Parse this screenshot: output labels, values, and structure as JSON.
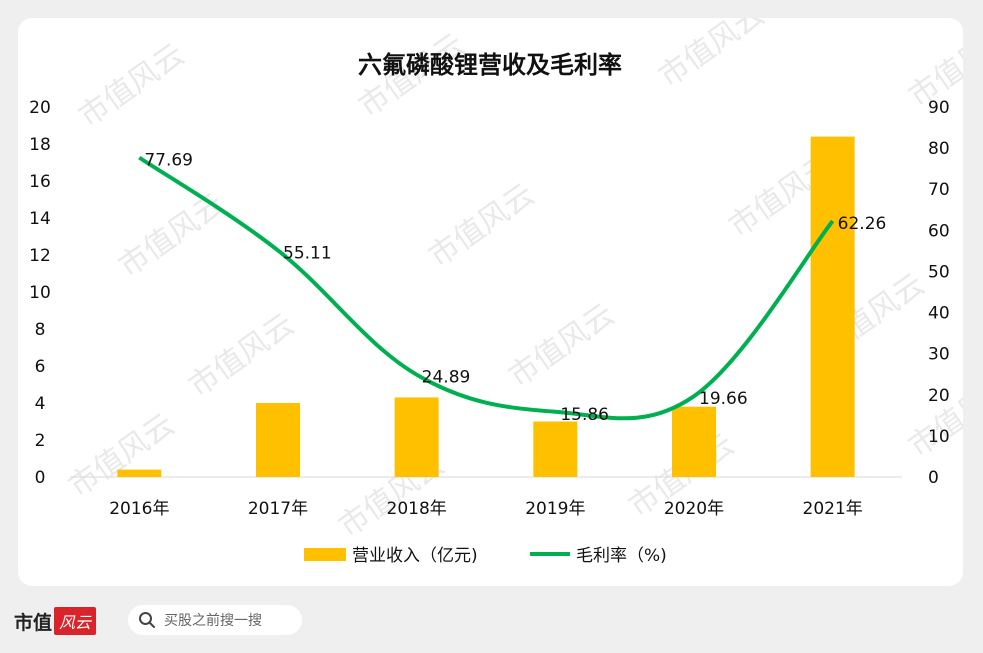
{
  "chart_data": {
    "type": "bar",
    "title": "六氟磷酸锂营收及毛利率",
    "categories": [
      "2016年",
      "2017年",
      "2018年",
      "2019年",
      "2020年",
      "2021年"
    ],
    "series": [
      {
        "name": "营业收入（亿元)",
        "type": "bar",
        "axis": "left",
        "color": "#ffc000",
        "values": [
          0.4,
          4.0,
          4.3,
          3.0,
          3.8,
          18.4
        ]
      },
      {
        "name": "毛利率（%)",
        "type": "line",
        "axis": "right",
        "color": "#00b050",
        "values": [
          77.69,
          55.11,
          24.89,
          15.86,
          19.66,
          62.26
        ],
        "labels": [
          "77.69",
          "55.11",
          "24.89",
          "15.86",
          "19.66",
          "62.26"
        ]
      }
    ],
    "y_left": {
      "range": [
        0,
        20
      ],
      "ticks": [
        "0",
        "2",
        "4",
        "6",
        "8",
        "10",
        "12",
        "14",
        "16",
        "18",
        "20"
      ]
    },
    "y_right": {
      "range": [
        0,
        90
      ],
      "ticks": [
        "0",
        "10",
        "20",
        "30",
        "40",
        "50",
        "60",
        "70",
        "80",
        "90"
      ]
    },
    "grid": false,
    "legend_position": "bottom"
  },
  "watermark": "市值风云",
  "footer": {
    "logo_text": "市值",
    "logo_mark": "风云",
    "search_placeholder": "买股之前搜一搜"
  }
}
